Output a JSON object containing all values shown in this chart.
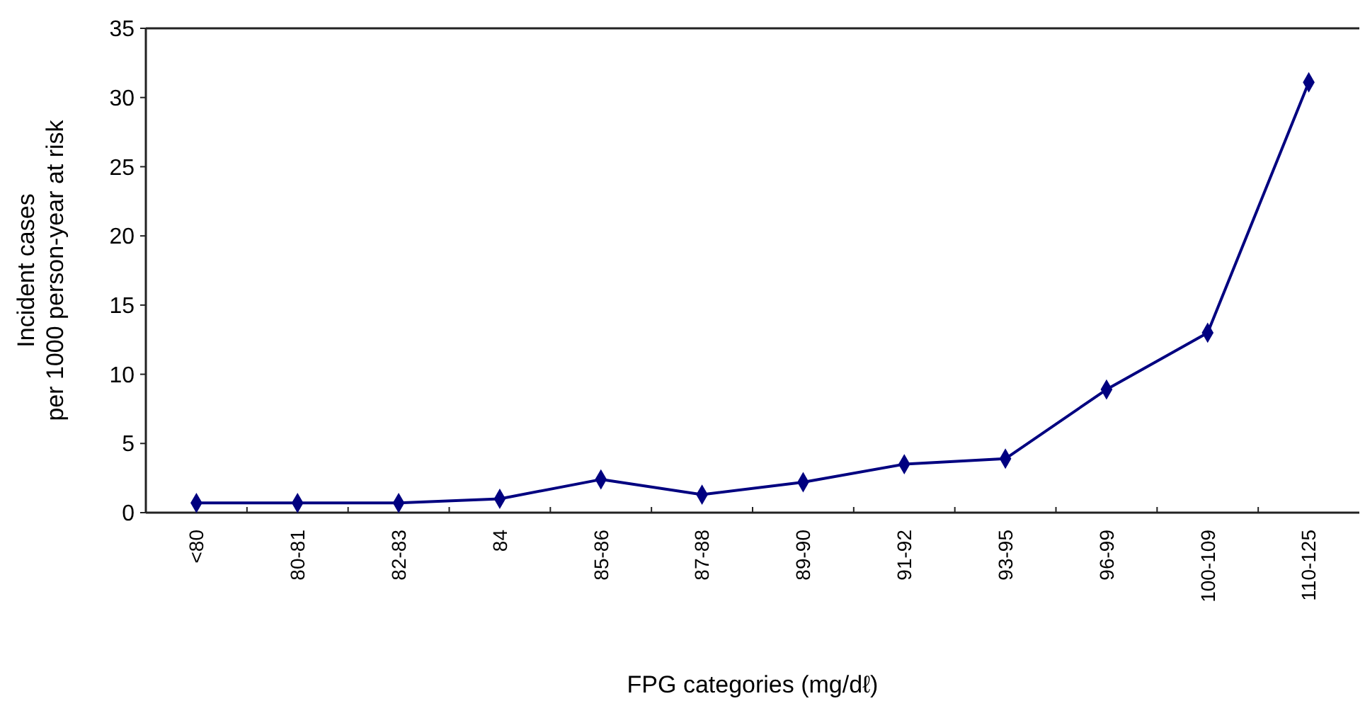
{
  "chart_data": {
    "type": "line",
    "xlabel": "FPG categories (mg/dℓ)",
    "ylabel": "Incident cases\nper 1000 person-year at risk",
    "categories": [
      "<80",
      "80-81",
      "82-83",
      "84",
      "85-86",
      "87-88",
      "89-90",
      "91-92",
      "93-95",
      "96-99",
      "100-109",
      "110-125"
    ],
    "series": [
      {
        "color": "#000080",
        "values": [
          0.7,
          0.7,
          0.7,
          1.0,
          2.4,
          1.3,
          2.2,
          3.5,
          3.9,
          8.9,
          13.0,
          31.1
        ]
      }
    ],
    "ylim": [
      0,
      35
    ],
    "yticks": [
      0,
      5,
      10,
      15,
      20,
      25,
      30,
      35
    ],
    "marker": "diamond",
    "line_style": "solid",
    "grid": false
  }
}
